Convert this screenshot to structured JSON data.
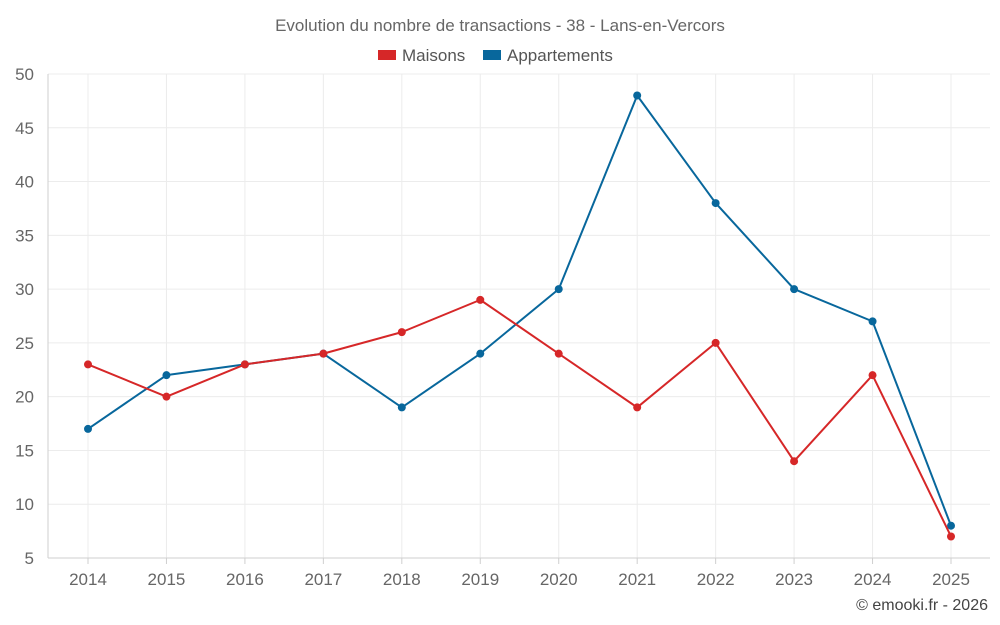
{
  "chart_data": {
    "type": "line",
    "title": "Evolution du nombre de transactions - 38 - Lans-en-Vercors",
    "categories": [
      "2014",
      "2015",
      "2016",
      "2017",
      "2018",
      "2019",
      "2020",
      "2021",
      "2022",
      "2023",
      "2024",
      "2025"
    ],
    "series": [
      {
        "name": "Maisons",
        "color": "#d62728",
        "values": [
          23,
          20,
          23,
          24,
          26,
          29,
          24,
          19,
          25,
          14,
          22,
          7
        ]
      },
      {
        "name": "Appartements",
        "color": "#08679c",
        "values": [
          17,
          22,
          23,
          24,
          19,
          24,
          30,
          48,
          38,
          30,
          27,
          8
        ]
      }
    ],
    "ylim": [
      5,
      50
    ],
    "yticks": [
      5,
      10,
      15,
      20,
      25,
      30,
      35,
      40,
      45,
      50
    ],
    "xlabel": "",
    "ylabel": "",
    "grid": true,
    "legend_position": "top-center"
  },
  "credit": "© emooki.fr - 2026"
}
